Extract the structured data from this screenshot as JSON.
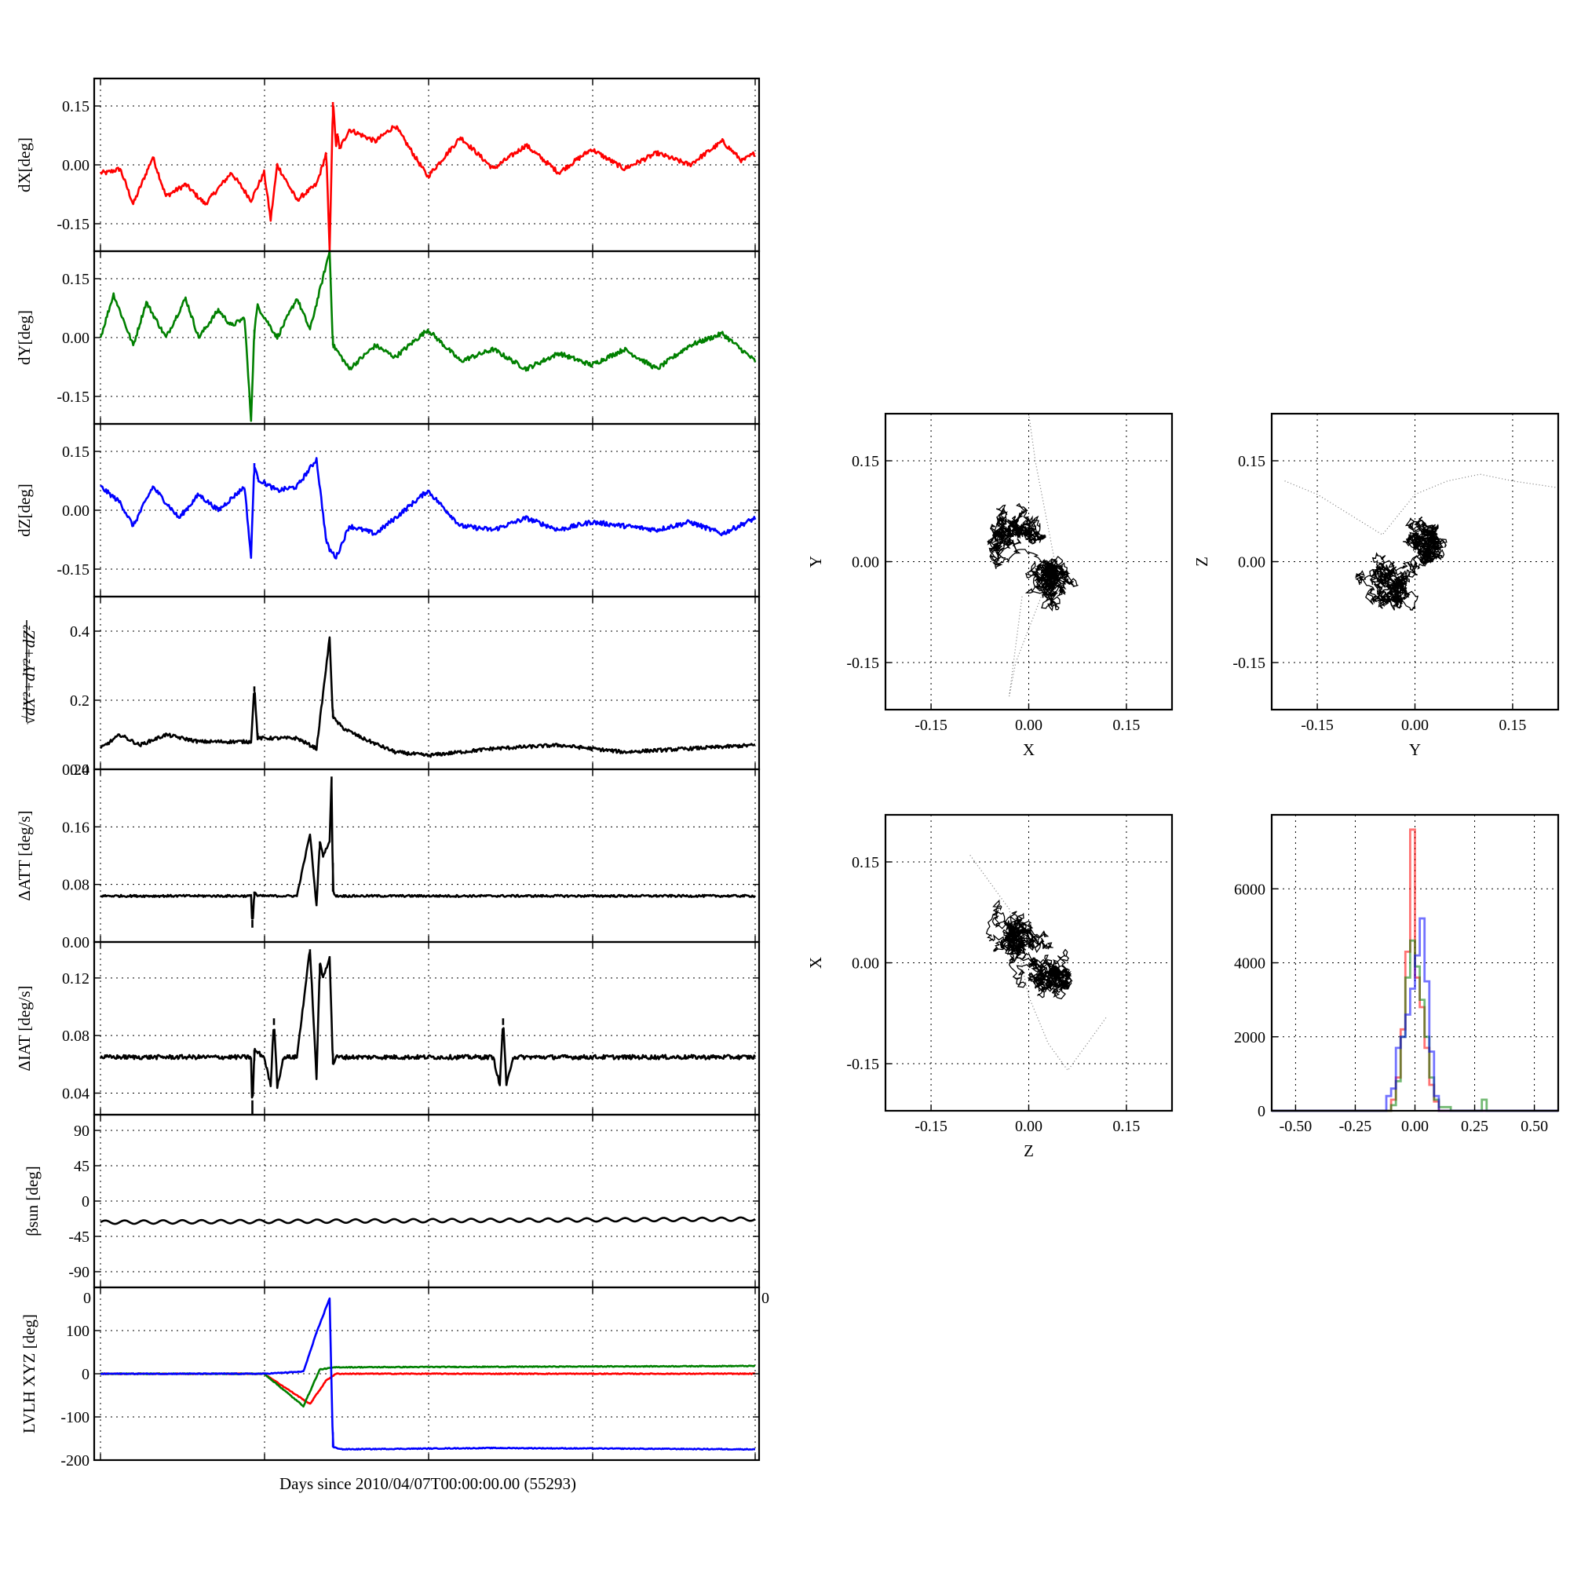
{
  "figure": {
    "xlabel": "Days since 2010/04/07T00:00:00.00 (55293)",
    "clipped_xtick_left": "0",
    "clipped_xtick_right": "0"
  },
  "chart_data": [
    {
      "id": "dX",
      "type": "line",
      "ylabel": "dX[deg]",
      "color": "#ff0000",
      "ylim": [
        -0.22,
        0.22
      ],
      "yticks": [
        "0.15",
        "0.00",
        "-0.15"
      ],
      "ytick_values": [
        0.15,
        0.0,
        -0.15
      ],
      "x": [
        0.01,
        0.03,
        0.05,
        0.08,
        0.1,
        0.13,
        0.16,
        0.2,
        0.23,
        0.25,
        0.26,
        0.27,
        0.3,
        0.33,
        0.345,
        0.35,
        0.355,
        0.36,
        0.362,
        0.365,
        0.38,
        0.42,
        0.45,
        0.5,
        0.55,
        0.6,
        0.65,
        0.7,
        0.75,
        0.8,
        0.85,
        0.9,
        0.95,
        0.98,
        1.0
      ],
      "y": [
        -0.02,
        -0.01,
        -0.1,
        0.02,
        -0.08,
        -0.05,
        -0.1,
        -0.02,
        -0.09,
        -0.02,
        -0.14,
        0.0,
        -0.09,
        -0.05,
        0.03,
        -0.22,
        0.16,
        0.05,
        0.08,
        0.04,
        0.09,
        0.06,
        0.1,
        -0.03,
        0.07,
        -0.01,
        0.05,
        -0.02,
        0.04,
        -0.01,
        0.03,
        0.0,
        0.06,
        0.01,
        0.03
      ]
    },
    {
      "id": "dY",
      "type": "line",
      "ylabel": "dY[deg]",
      "color": "#008000",
      "ylim": [
        -0.22,
        0.22
      ],
      "yticks": [
        "0.15",
        "0.00",
        "-0.15"
      ],
      "ytick_values": [
        0.15,
        0.0,
        -0.15
      ],
      "x": [
        0.0,
        0.02,
        0.05,
        0.07,
        0.1,
        0.13,
        0.15,
        0.18,
        0.2,
        0.22,
        0.23,
        0.235,
        0.24,
        0.27,
        0.3,
        0.32,
        0.35,
        0.355,
        0.36,
        0.38,
        0.42,
        0.45,
        0.5,
        0.55,
        0.6,
        0.65,
        0.7,
        0.75,
        0.8,
        0.85,
        0.9,
        0.95,
        1.0
      ],
      "y": [
        0.0,
        0.11,
        -0.02,
        0.09,
        0.0,
        0.1,
        0.0,
        0.07,
        0.03,
        0.05,
        -0.21,
        0.02,
        0.08,
        0.0,
        0.1,
        0.02,
        0.22,
        -0.02,
        -0.03,
        -0.08,
        -0.02,
        -0.05,
        0.02,
        -0.06,
        -0.03,
        -0.08,
        -0.04,
        -0.07,
        -0.03,
        -0.08,
        -0.02,
        0.01,
        -0.06
      ]
    },
    {
      "id": "dZ",
      "type": "line",
      "ylabel": "dZ[deg]",
      "color": "#0000ff",
      "ylim": [
        -0.22,
        0.22
      ],
      "yticks": [
        "0.15",
        "0.00",
        "-0.15"
      ],
      "ytick_values": [
        0.15,
        0.0,
        -0.15
      ],
      "x": [
        0.0,
        0.03,
        0.05,
        0.08,
        0.12,
        0.15,
        0.18,
        0.22,
        0.23,
        0.235,
        0.24,
        0.27,
        0.3,
        0.33,
        0.345,
        0.35,
        0.36,
        0.38,
        0.42,
        0.45,
        0.5,
        0.55,
        0.6,
        0.65,
        0.7,
        0.75,
        0.8,
        0.85,
        0.9,
        0.95,
        1.0
      ],
      "y": [
        0.06,
        0.02,
        -0.04,
        0.06,
        -0.02,
        0.04,
        0.0,
        0.06,
        -0.12,
        0.12,
        0.08,
        0.05,
        0.06,
        0.13,
        -0.08,
        -0.1,
        -0.12,
        -0.04,
        -0.06,
        -0.02,
        0.05,
        -0.04,
        -0.05,
        -0.02,
        -0.05,
        -0.03,
        -0.04,
        -0.05,
        -0.03,
        -0.06,
        -0.02
      ]
    },
    {
      "id": "dR",
      "type": "line",
      "ylabel": "√dX²+dY²+dZ²",
      "color": "#000000",
      "ylim": [
        0.0,
        0.5
      ],
      "yticks": [
        "0.4",
        "0.2",
        "0.0"
      ],
      "ytick_values": [
        0.4,
        0.2,
        0.0
      ],
      "x": [
        0.0,
        0.03,
        0.06,
        0.1,
        0.15,
        0.2,
        0.23,
        0.235,
        0.24,
        0.3,
        0.33,
        0.35,
        0.355,
        0.37,
        0.4,
        0.45,
        0.5,
        0.55,
        0.6,
        0.7,
        0.8,
        0.9,
        1.0
      ],
      "y": [
        0.06,
        0.1,
        0.07,
        0.1,
        0.08,
        0.08,
        0.08,
        0.24,
        0.09,
        0.09,
        0.06,
        0.38,
        0.15,
        0.12,
        0.09,
        0.05,
        0.04,
        0.05,
        0.06,
        0.07,
        0.05,
        0.06,
        0.07
      ]
    },
    {
      "id": "dATT",
      "type": "line",
      "ylabel": "ΔATT [deg/s]",
      "color": "#000000",
      "ylim": [
        0.0,
        0.24
      ],
      "yticks": [
        "0.24",
        "0.16",
        "0.08",
        "0.00"
      ],
      "ytick_values": [
        0.24,
        0.16,
        0.08,
        0.0
      ],
      "x": [
        0.0,
        0.1,
        0.2,
        0.23,
        0.232,
        0.235,
        0.24,
        0.3,
        0.32,
        0.33,
        0.335,
        0.34,
        0.35,
        0.353,
        0.355,
        0.36,
        0.4,
        0.6,
        0.8,
        1.0
      ],
      "y": [
        0.064,
        0.064,
        0.064,
        0.064,
        0.02,
        0.07,
        0.064,
        0.064,
        0.15,
        0.05,
        0.14,
        0.12,
        0.14,
        0.23,
        0.07,
        0.064,
        0.064,
        0.064,
        0.064,
        0.064
      ]
    },
    {
      "id": "dIAT",
      "type": "line",
      "ylabel": "ΔIAT [deg/s]",
      "color": "#000000",
      "ylim": [
        0.025,
        0.145
      ],
      "yticks": [
        "0.12",
        "0.08",
        "0.04"
      ],
      "ytick_values": [
        0.12,
        0.08,
        0.04
      ],
      "x": [
        0.0,
        0.1,
        0.2,
        0.23,
        0.232,
        0.235,
        0.25,
        0.26,
        0.265,
        0.27,
        0.28,
        0.3,
        0.32,
        0.33,
        0.335,
        0.34,
        0.35,
        0.355,
        0.36,
        0.4,
        0.6,
        0.61,
        0.615,
        0.62,
        0.63,
        0.8,
        1.0
      ],
      "y": [
        0.065,
        0.065,
        0.065,
        0.065,
        0.025,
        0.07,
        0.065,
        0.045,
        0.092,
        0.045,
        0.065,
        0.065,
        0.14,
        0.05,
        0.13,
        0.12,
        0.135,
        0.06,
        0.065,
        0.065,
        0.065,
        0.045,
        0.092,
        0.045,
        0.065,
        0.065,
        0.065
      ]
    },
    {
      "id": "beta",
      "type": "line",
      "ylabel": "βsun [deg]",
      "color": "#000000",
      "ylim": [
        -110,
        110
      ],
      "yticks": [
        "90",
        "45",
        "0",
        "-45",
        "-90"
      ],
      "ytick_values": [
        90,
        45,
        0,
        -45,
        -90
      ],
      "x": [
        0.0,
        1.0
      ],
      "y": [
        -27,
        -23
      ]
    },
    {
      "id": "lvlh",
      "type": "line",
      "ylabel": "LVLH XYZ [deg]",
      "xlabel": "Days since 2010/04/07T00:00:00.00 (55293)",
      "ylim": [
        -200,
        200
      ],
      "yticks": [
        "100",
        "0",
        "-100",
        "-200"
      ],
      "ytick_values": [
        100,
        0,
        -100,
        -200
      ],
      "series": [
        {
          "color": "#ff0000",
          "x": [
            0.0,
            0.25,
            0.32,
            0.345,
            0.36,
            1.0
          ],
          "y": [
            0,
            0,
            -70,
            -15,
            0,
            0
          ]
        },
        {
          "color": "#008000",
          "x": [
            0.0,
            0.25,
            0.31,
            0.335,
            0.36,
            1.0
          ],
          "y": [
            0,
            0,
            -75,
            10,
            15,
            18
          ]
        },
        {
          "color": "#0000ff",
          "x": [
            0.0,
            0.25,
            0.31,
            0.33,
            0.35,
            0.355,
            0.37,
            0.6,
            1.0
          ],
          "y": [
            0,
            0,
            5,
            95,
            175,
            -170,
            -175,
            -172,
            -175
          ]
        }
      ]
    },
    {
      "id": "scatterXY",
      "type": "scatter",
      "xlabel": "X",
      "ylabel": "Y",
      "xlim": [
        -0.22,
        0.22
      ],
      "ylim": [
        -0.22,
        0.22
      ],
      "xticks": [
        "-0.15",
        "0.00",
        "0.15"
      ],
      "yticks": [
        "0.15",
        "0.00",
        "-0.15"
      ],
      "tick_values": [
        -0.15,
        0.0,
        0.15
      ]
    },
    {
      "id": "scatterYZ",
      "type": "scatter",
      "xlabel": "Y",
      "ylabel": "Z",
      "xlim": [
        -0.22,
        0.22
      ],
      "ylim": [
        -0.22,
        0.22
      ],
      "xticks": [
        "-0.15",
        "0.00",
        "0.15"
      ],
      "yticks": [
        "0.15",
        "0.00",
        "-0.15"
      ],
      "tick_values": [
        -0.15,
        0.0,
        0.15
      ]
    },
    {
      "id": "scatterZX",
      "type": "scatter",
      "xlabel": "Z",
      "ylabel": "X",
      "xlim": [
        -0.22,
        0.22
      ],
      "ylim": [
        -0.22,
        0.22
      ],
      "xticks": [
        "-0.15",
        "0.00",
        "0.15"
      ],
      "yticks": [
        "0.15",
        "0.00",
        "-0.15"
      ],
      "tick_values": [
        -0.15,
        0.0,
        0.15
      ]
    },
    {
      "id": "hist",
      "type": "histogram",
      "xlim": [
        -0.6,
        0.6
      ],
      "ylim": [
        0,
        8000
      ],
      "xticks": [
        "-0.50",
        "-0.25",
        "0.00",
        "0.25",
        "0.50"
      ],
      "xtick_values": [
        -0.5,
        -0.25,
        0.0,
        0.25,
        0.5
      ],
      "yticks": [
        "6000",
        "4000",
        "2000",
        "0"
      ],
      "ytick_values": [
        6000,
        4000,
        2000,
        0
      ],
      "series": [
        {
          "color": "#ff0000",
          "bins": [
            -0.15,
            -0.1,
            -0.08,
            -0.06,
            -0.04,
            -0.02,
            0.0,
            0.02,
            0.04,
            0.06,
            0.08,
            0.1,
            0.15
          ],
          "counts": [
            0,
            300,
            900,
            2200,
            4300,
            7600,
            3600,
            2800,
            1700,
            700,
            250,
            0,
            0
          ]
        },
        {
          "color": "#008000",
          "bins": [
            -0.15,
            -0.1,
            -0.08,
            -0.06,
            -0.04,
            -0.02,
            0.0,
            0.02,
            0.04,
            0.06,
            0.08,
            0.1,
            0.15,
            0.28,
            0.3
          ],
          "counts": [
            0,
            150,
            800,
            2000,
            3600,
            4600,
            3900,
            3000,
            2000,
            900,
            300,
            100,
            0,
            300,
            0
          ]
        },
        {
          "color": "#0000ff",
          "bins": [
            -0.15,
            -0.12,
            -0.1,
            -0.08,
            -0.06,
            -0.04,
            -0.02,
            0.0,
            0.02,
            0.04,
            0.06,
            0.08,
            0.1,
            0.15
          ],
          "counts": [
            0,
            400,
            600,
            1700,
            2000,
            2600,
            3300,
            4200,
            5200,
            3500,
            1600,
            400,
            0,
            0
          ]
        }
      ]
    }
  ]
}
